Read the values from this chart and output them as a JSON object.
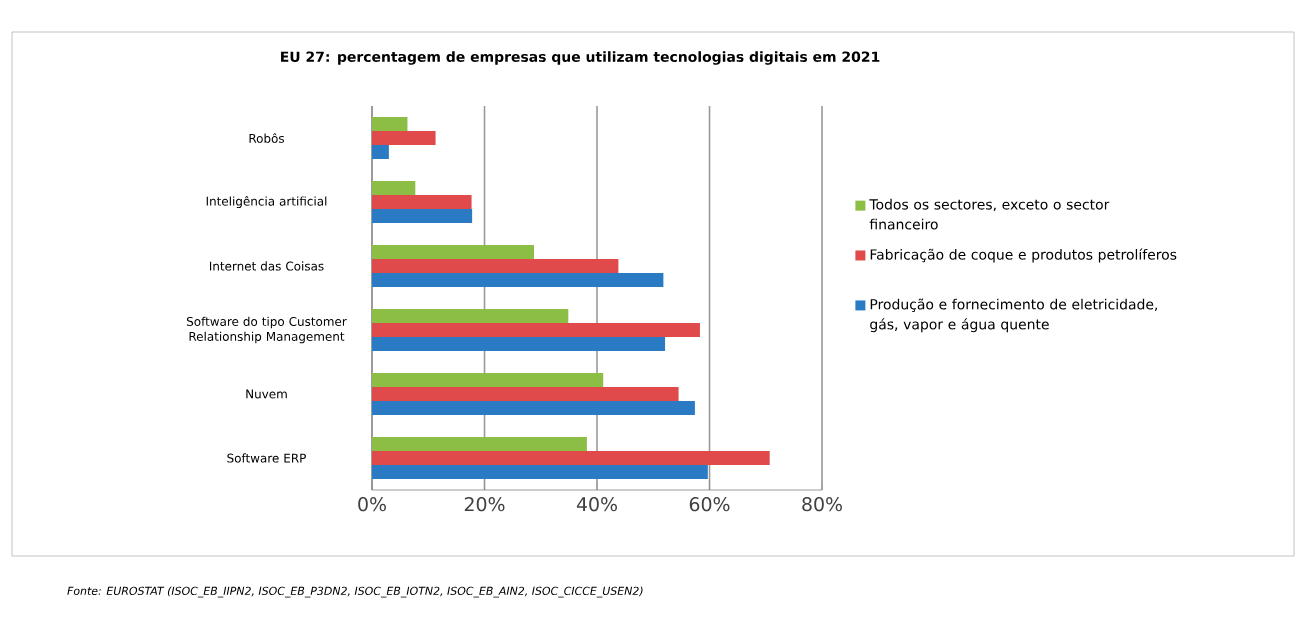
{
  "chart_data": {
    "type": "bar",
    "orientation": "horizontal",
    "title": "EU 27: percentagem de empresas que utilizam tecnologias digitais em 2021",
    "categories": [
      "Robôs",
      "Inteligência artificial",
      "Internet das Coisas",
      "Software do tipo Customer Relationship Management",
      "Nuvem",
      "Software ERP"
    ],
    "series": [
      {
        "name": "Todos os sectores, exceto o sector financeiro",
        "color": "#8cbd45",
        "values": [
          6.3,
          7.7,
          28.8,
          34.9,
          41.1,
          38.2
        ]
      },
      {
        "name": "Fabricação de coque e produtos petrolíferos",
        "color": "#e04a4a",
        "values": [
          11.3,
          17.7,
          43.8,
          58.3,
          54.5,
          70.7
        ]
      },
      {
        "name": "Produção e fornecimento de eletricidade, gás, vapor e água quente",
        "color": "#2a7ac4",
        "values": [
          3.0,
          17.8,
          51.8,
          52.1,
          57.4,
          59.7
        ]
      }
    ],
    "xlim": [
      0,
      80
    ],
    "xticks": [
      {
        "value": 0,
        "label": "0%"
      },
      {
        "value": 20,
        "label": "20%"
      },
      {
        "value": 40,
        "label": "40%"
      },
      {
        "value": 60,
        "label": "60%"
      },
      {
        "value": 80,
        "label": "80%"
      }
    ],
    "grid": "x",
    "legend": "right",
    "annotations": [
      "Fonte: EUROSTAT (ISOC_EB_IIPN2, ISOC_EB_P3DN2, ISOC_EB_IOTN2,  ISOC_EB_AIN2, ISOC_CICCE_USEN2)"
    ]
  }
}
